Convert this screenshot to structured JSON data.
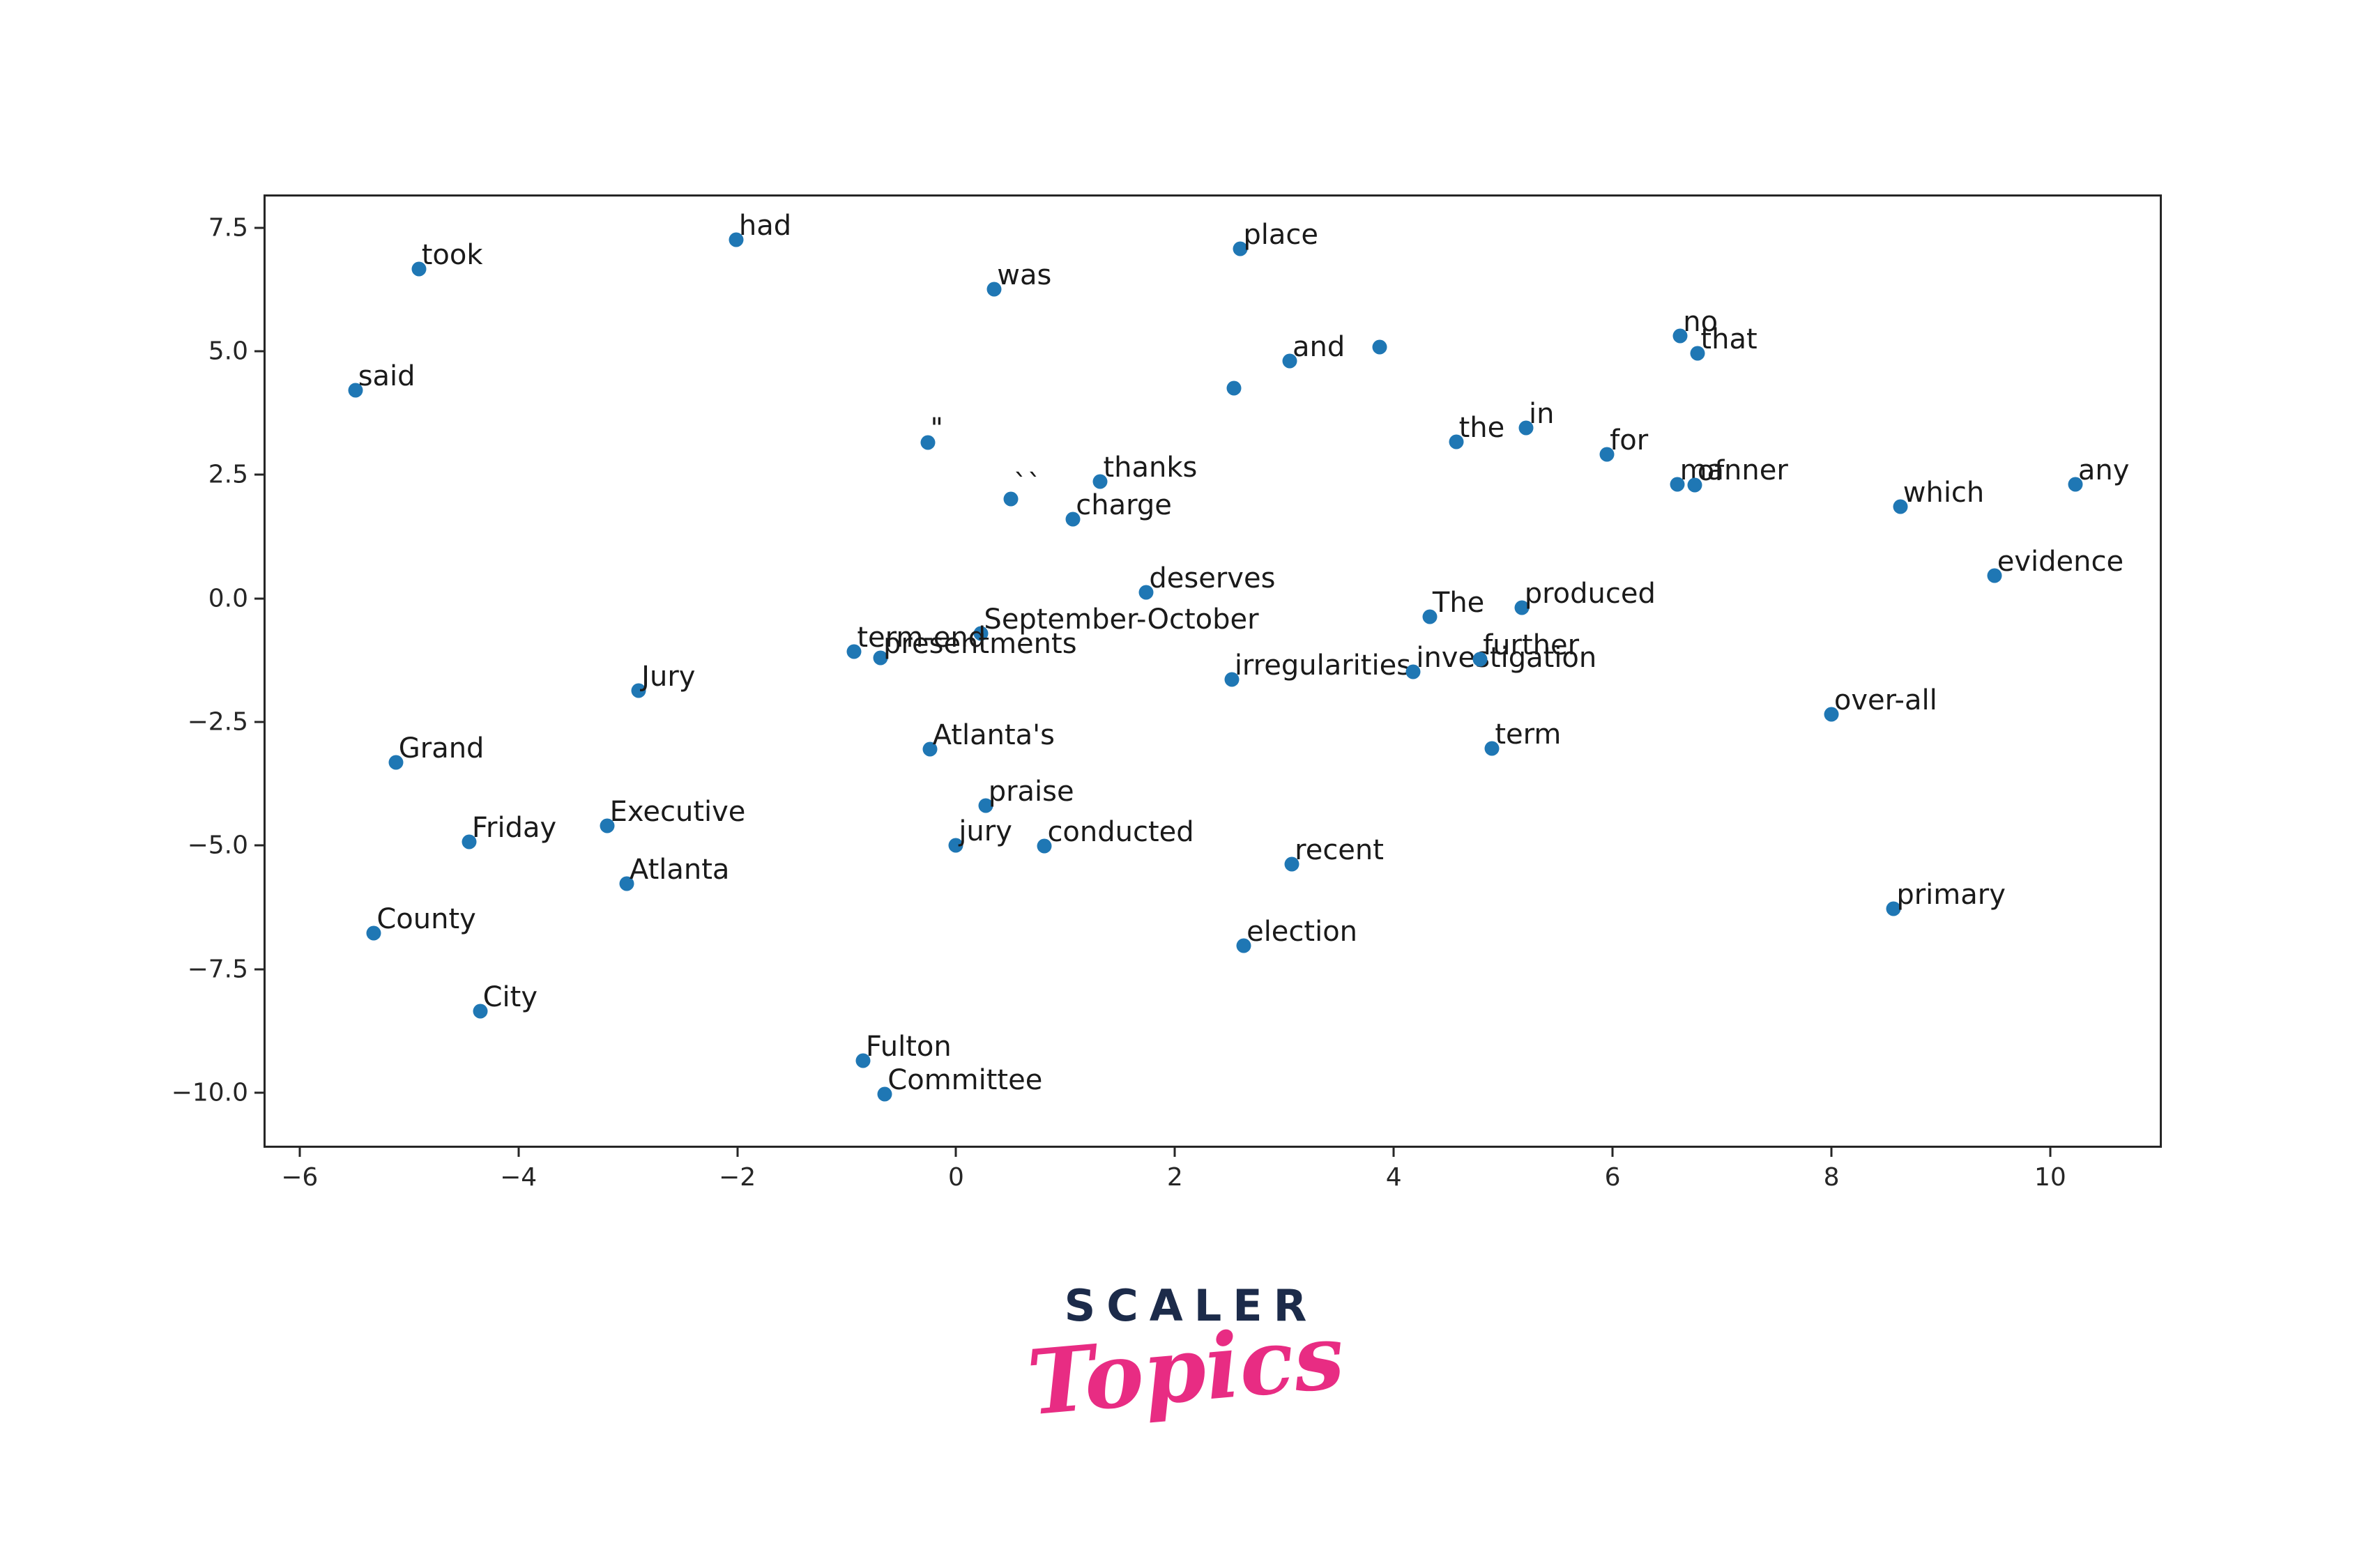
{
  "page": {
    "background": "#ffffff"
  },
  "chart_data": {
    "type": "scatter",
    "title": "",
    "subtitle": "",
    "xlabel": "",
    "ylabel": "",
    "grid": false,
    "legend_position": "none",
    "xlim": [
      -6.33,
      11.02
    ],
    "ylim": [
      -11.11,
      8.17
    ],
    "point_color": "#1f77b4",
    "axis_color": "#262626",
    "label_color": "#1a1a1a",
    "x_ticks": [
      {
        "v": -6,
        "label": "−6"
      },
      {
        "v": -4,
        "label": "−4"
      },
      {
        "v": -2,
        "label": "−2"
      },
      {
        "v": 0,
        "label": "0"
      },
      {
        "v": 2,
        "label": "2"
      },
      {
        "v": 4,
        "label": "4"
      },
      {
        "v": 6,
        "label": "6"
      },
      {
        "v": 8,
        "label": "8"
      },
      {
        "v": 10,
        "label": "10"
      }
    ],
    "y_ticks": [
      {
        "v": 7.5,
        "label": "7.5"
      },
      {
        "v": 5.0,
        "label": "5.0"
      },
      {
        "v": 2.5,
        "label": "2.5"
      },
      {
        "v": 0.0,
        "label": "0.0"
      },
      {
        "v": -2.5,
        "label": "−2.5"
      },
      {
        "v": -5.0,
        "label": "−5.0"
      },
      {
        "v": -7.5,
        "label": "−7.5"
      },
      {
        "v": -10.0,
        "label": "−10.0"
      }
    ],
    "points": [
      {
        "word": "had",
        "x": -2.03,
        "y": 7.29
      },
      {
        "word": "took",
        "x": -4.93,
        "y": 6.7
      },
      {
        "word": "said",
        "x": -5.51,
        "y": 4.25
      },
      {
        "word": "place",
        "x": 2.58,
        "y": 7.11
      },
      {
        "word": "was",
        "x": 0.33,
        "y": 6.29
      },
      {
        "word": "and",
        "x": 3.03,
        "y": 4.84
      },
      {
        "word": "",
        "x": 3.85,
        "y": 5.13
      },
      {
        "word": "",
        "x": 2.52,
        "y": 4.3
      },
      {
        "word": "\"",
        "x": -0.28,
        "y": 3.19
      },
      {
        "word": "the",
        "x": 4.55,
        "y": 3.21
      },
      {
        "word": "in",
        "x": 5.19,
        "y": 3.49
      },
      {
        "word": "for",
        "x": 5.93,
        "y": 2.95
      },
      {
        "word": "``",
        "x": 0.48,
        "y": 2.06
      },
      {
        "word": "thanks",
        "x": 1.3,
        "y": 2.4
      },
      {
        "word": "charge",
        "x": 1.05,
        "y": 1.64
      },
      {
        "word": "manner",
        "x": 6.57,
        "y": 2.35
      },
      {
        "word": "of",
        "x": 6.73,
        "y": 2.33
      },
      {
        "word": "no",
        "x": 6.6,
        "y": 5.35
      },
      {
        "word": "that",
        "x": 6.76,
        "y": 5.0
      },
      {
        "word": "any",
        "x": 10.21,
        "y": 2.35
      },
      {
        "word": "which",
        "x": 8.61,
        "y": 1.9
      },
      {
        "word": "evidence",
        "x": 9.47,
        "y": 0.51
      },
      {
        "word": "deserves",
        "x": 1.72,
        "y": 0.17
      },
      {
        "word": "The",
        "x": 4.31,
        "y": -0.33
      },
      {
        "word": "produced",
        "x": 5.15,
        "y": -0.15
      },
      {
        "word": "September-October",
        "x": 0.21,
        "y": -0.66
      },
      {
        "word": "term-end",
        "x": -0.95,
        "y": -1.04
      },
      {
        "word": "presentments",
        "x": -0.71,
        "y": -1.16
      },
      {
        "word": "irregularities",
        "x": 2.5,
        "y": -1.6
      },
      {
        "word": "investigation",
        "x": 4.16,
        "y": -1.44
      },
      {
        "word": "further",
        "x": 4.77,
        "y": -1.19
      },
      {
        "word": "Jury",
        "x": -2.92,
        "y": -1.82
      },
      {
        "word": "Atlanta's",
        "x": -0.26,
        "y": -3.0
      },
      {
        "word": "over-all",
        "x": 7.98,
        "y": -2.3
      },
      {
        "word": "Grand",
        "x": -5.14,
        "y": -3.28
      },
      {
        "word": "term",
        "x": 4.88,
        "y": -2.99
      },
      {
        "word": "praise",
        "x": 0.25,
        "y": -4.15
      },
      {
        "word": "Executive",
        "x": -3.21,
        "y": -4.55
      },
      {
        "word": "Friday",
        "x": -4.47,
        "y": -4.88
      },
      {
        "word": "jury",
        "x": -0.02,
        "y": -4.95
      },
      {
        "word": "conducted",
        "x": 0.79,
        "y": -4.97
      },
      {
        "word": "Atlanta",
        "x": -3.03,
        "y": -5.72
      },
      {
        "word": "recent",
        "x": 3.05,
        "y": -5.33
      },
      {
        "word": "County",
        "x": -5.34,
        "y": -6.73
      },
      {
        "word": "election",
        "x": 2.61,
        "y": -6.98
      },
      {
        "word": "primary",
        "x": 8.55,
        "y": -6.23
      },
      {
        "word": "City",
        "x": -4.37,
        "y": -8.3
      },
      {
        "word": "Fulton",
        "x": -0.87,
        "y": -9.3
      },
      {
        "word": "Committee",
        "x": -0.67,
        "y": -9.98
      }
    ]
  },
  "branding": {
    "line1": "SCALER",
    "line2": "Topics",
    "navy": "#1c2b4a",
    "pink": "#e82c83"
  }
}
